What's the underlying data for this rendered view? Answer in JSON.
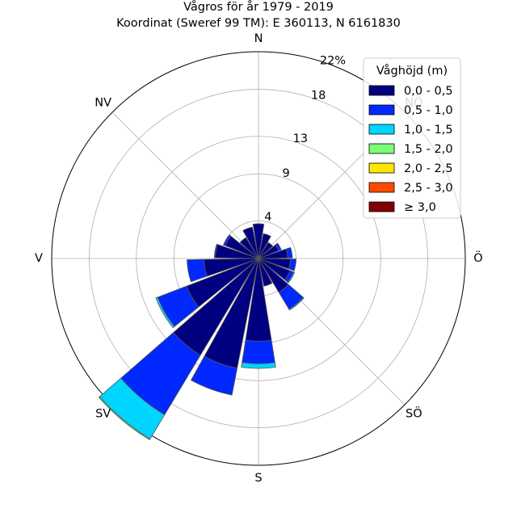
{
  "chart_data": {
    "type": "windrose",
    "title": "Vågros för år 1979 - 2019",
    "subtitle": "Koordinat (Sweref 99 TM): E 360113, N 6161830",
    "direction_labels": [
      "N",
      "NV",
      "V",
      "SV",
      "S",
      "SÖ",
      "Ö",
      "NÖ"
    ],
    "direction_angles": [
      0,
      315,
      270,
      225,
      180,
      135,
      90,
      45
    ],
    "radial_ticks": [
      4,
      9,
      13,
      18,
      22
    ],
    "radial_tick_labels": [
      "4",
      "9",
      "13",
      "18",
      "22%"
    ],
    "radial_max": 22,
    "grid": true,
    "legend": {
      "title": "Våghöjd (m)",
      "placement": "top-right",
      "entries": [
        "0,0 - 0,5",
        "0,5 - 1,0",
        "1,0 - 1,5",
        "1,5 - 2,0",
        "2,0 - 2,5",
        "2,5 - 3,0",
        "≥ 3,0"
      ],
      "colors": [
        "#000080",
        "#0028ff",
        "#00d5ff",
        "#7cff79",
        "#ffe600",
        "#ff4a00",
        "#800000"
      ]
    },
    "sector_width_deg": 18,
    "sectors": [
      {
        "dir": 0,
        "cumulative": [
          3.7,
          3.7,
          3.7,
          3.7,
          3.7,
          3.7,
          3.7
        ]
      },
      {
        "dir": 20,
        "cumulative": [
          2.7,
          2.7,
          2.7,
          2.7,
          2.7,
          2.7,
          2.7
        ]
      },
      {
        "dir": 40,
        "cumulative": [
          2.0,
          2.0,
          2.0,
          2.0,
          2.0,
          2.0,
          2.0
        ]
      },
      {
        "dir": 60,
        "cumulative": [
          2.3,
          2.6,
          2.6,
          2.6,
          2.6,
          2.6,
          2.6
        ]
      },
      {
        "dir": 80,
        "cumulative": [
          3.1,
          3.6,
          3.6,
          3.6,
          3.6,
          3.6,
          3.6
        ]
      },
      {
        "dir": 100,
        "cumulative": [
          3.4,
          4.0,
          4.0,
          4.0,
          4.0,
          4.0,
          4.0
        ]
      },
      {
        "dir": 120,
        "cumulative": [
          3.6,
          4.0,
          4.1,
          4.1,
          4.1,
          4.1,
          4.1
        ]
      },
      {
        "dir": 140,
        "cumulative": [
          4.2,
          6.3,
          6.4,
          6.4,
          6.4,
          6.4,
          6.4
        ]
      },
      {
        "dir": 160,
        "cumulative": [
          3.0,
          3.0,
          3.0,
          3.0,
          3.0,
          3.0,
          3.0
        ]
      },
      {
        "dir": 180,
        "cumulative": [
          8.8,
          11.2,
          11.7,
          11.7,
          11.7,
          11.7,
          11.7
        ]
      },
      {
        "dir": 200,
        "cumulative": [
          11.9,
          14.8,
          14.8,
          14.8,
          14.8,
          14.8,
          14.8
        ]
      },
      {
        "dir": 220,
        "cumulative": [
          12.0,
          19.4,
          22.4,
          22.5,
          22.5,
          22.5,
          22.5
        ]
      },
      {
        "dir": 240,
        "cumulative": [
          8.2,
          11.5,
          11.7,
          11.7,
          11.7,
          11.7,
          11.7
        ]
      },
      {
        "dir": 260,
        "cumulative": [
          5.8,
          7.6,
          7.6,
          7.6,
          7.6,
          7.6,
          7.6
        ]
      },
      {
        "dir": 280,
        "cumulative": [
          4.6,
          4.7,
          4.7,
          4.7,
          4.7,
          4.7,
          4.7
        ]
      },
      {
        "dir": 300,
        "cumulative": [
          3.8,
          4.0,
          4.0,
          4.0,
          4.0,
          4.0,
          4.0
        ]
      },
      {
        "dir": 320,
        "cumulative": [
          2.6,
          2.6,
          2.6,
          2.6,
          2.6,
          2.6,
          2.6
        ]
      },
      {
        "dir": 340,
        "cumulative": [
          3.4,
          3.4,
          3.4,
          3.4,
          3.4,
          3.4,
          3.4
        ]
      }
    ]
  }
}
